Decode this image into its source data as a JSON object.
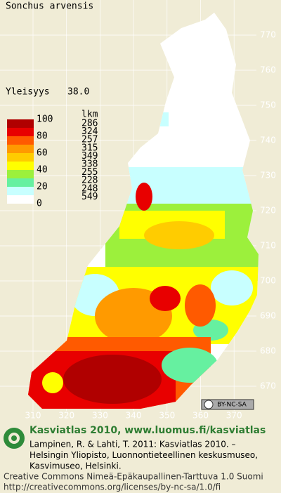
{
  "header": {
    "title": "Sonchus arvensis",
    "index_label": "Yleisyys",
    "index_value": "38.0"
  },
  "legend": {
    "header": "lkm",
    "colors": [
      "#b00000",
      "#e80000",
      "#ff5a00",
      "#ff9a00",
      "#ffcc00",
      "#ffff00",
      "#9cf03c",
      "#66f0a0",
      "#c8ffff",
      "#ffffff"
    ],
    "scale_labels": [
      100,
      80,
      60,
      40,
      20,
      0
    ],
    "counts": [
      286,
      324,
      257,
      315,
      349,
      338,
      255,
      228,
      248,
      549
    ]
  },
  "grid": {
    "northings": [
      770,
      760,
      750,
      740,
      730,
      720,
      710,
      700,
      690,
      680,
      670
    ],
    "eastings": [
      310,
      320,
      330,
      340,
      350,
      360,
      370
    ]
  },
  "badge": {
    "license": "BY-NC-SA"
  },
  "footer": {
    "atlas_title": "Kasviatlas 2010, www.luomus.fi/kasviatlas",
    "citation": [
      "Lampinen, R. & Lahti, T. 2011: Kasviatlas 2010. –",
      "Helsingin Yliopisto, Luonnontieteellinen keskusmuseo,",
      "Kasvimuseo, Helsinki."
    ],
    "license": [
      "Creative Commons Nimeä-Epäkaupallinen-Tarttuva 1.0 Suomi",
      "http://creativecommons.org/licenses/by-nc-sa/1.0/fi"
    ]
  }
}
